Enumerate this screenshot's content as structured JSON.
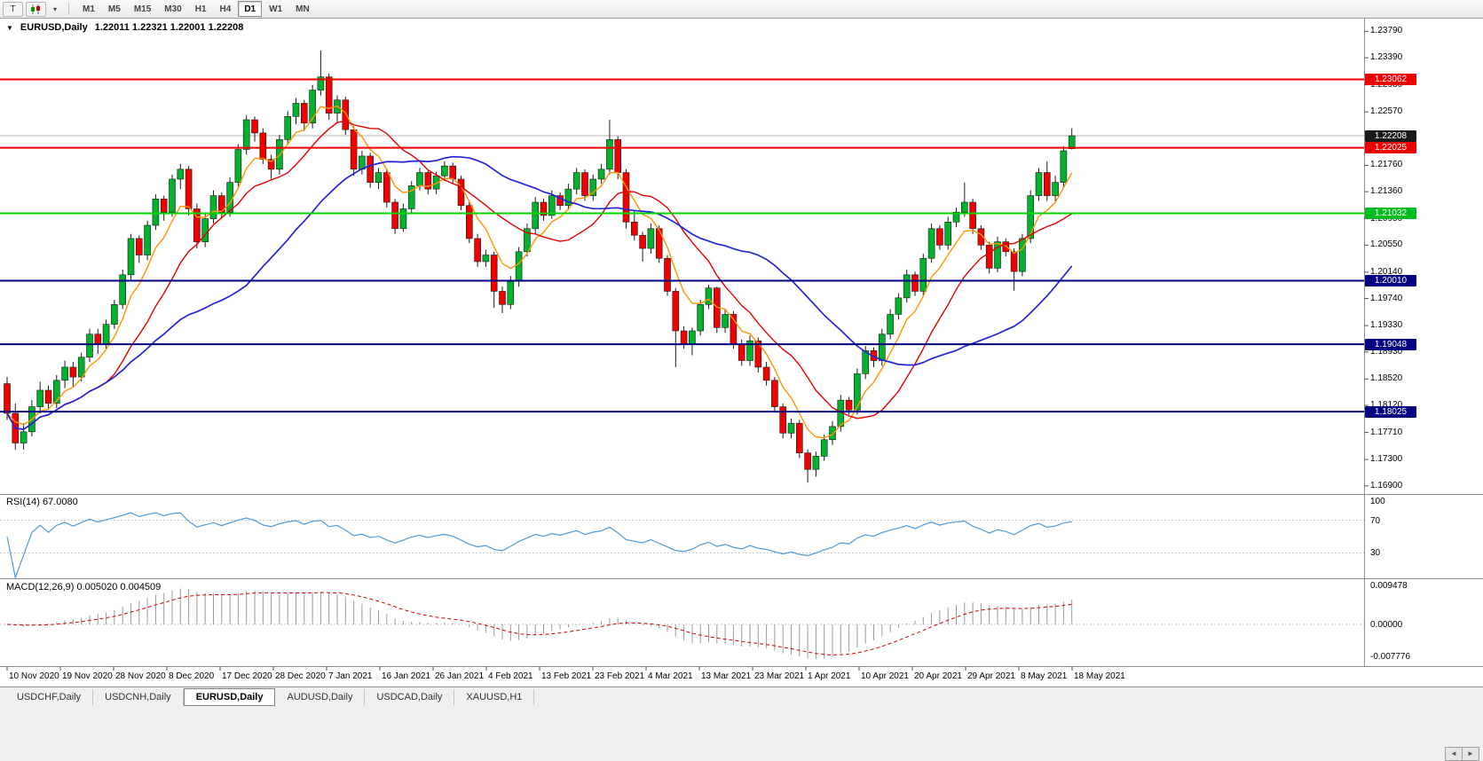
{
  "toolbar": {
    "tool_button": "T",
    "caret_icon": "▾",
    "timeframes": [
      "M1",
      "M5",
      "M15",
      "M30",
      "H1",
      "H4",
      "D1",
      "W1",
      "MN"
    ],
    "active_timeframe": "D1"
  },
  "chart": {
    "collapse_icon": "▼",
    "title": "EURUSD,Daily",
    "ohlc_text": "1.22011 1.22321 1.22001 1.22208",
    "open": "1.22011",
    "high": "1.22321",
    "low": "1.22001",
    "close": "1.22208"
  },
  "price_axis": {
    "ticks": [
      "1.23790",
      "1.23390",
      "1.22980",
      "1.22570",
      "1.21760",
      "1.21360",
      "1.20950",
      "1.20550",
      "1.20140",
      "1.19740",
      "1.19330",
      "1.18930",
      "1.18520",
      "1.18120",
      "1.17710",
      "1.17300",
      "1.16900"
    ],
    "badges": [
      {
        "label": "1.23062",
        "bg": "#ee0000"
      },
      {
        "label": "1.22208",
        "bg": "#1a1a1a"
      },
      {
        "label": "1.22025",
        "bg": "#ee0000"
      },
      {
        "label": "1.21032",
        "bg": "#00bb22"
      },
      {
        "label": "1.20010",
        "bg": "#000080"
      },
      {
        "label": "1.19048",
        "bg": "#000080"
      },
      {
        "label": "1.18025",
        "bg": "#000080"
      }
    ]
  },
  "rsi_panel": {
    "label": "RSI(14) 67.0080",
    "levels": [
      "100",
      "70",
      "30"
    ]
  },
  "macd_panel": {
    "label": "MACD(12,26,9) 0.005020 0.004509",
    "axis_labels": [
      "0.009478",
      "0.00000",
      "-0.007776"
    ]
  },
  "date_axis": {
    "labels": [
      "10 Nov 2020",
      "19 Nov 2020",
      "28 Nov 2020",
      "8 Dec 2020",
      "17 Dec 2020",
      "28 Dec 2020",
      "7 Jan 2021",
      "16 Jan 2021",
      "26 Jan 2021",
      "4 Feb 2021",
      "13 Feb 2021",
      "23 Feb 2021",
      "4 Mar 2021",
      "13 Mar 2021",
      "23 Mar 2021",
      "1 Apr 2021",
      "10 Apr 2021",
      "20 Apr 2021",
      "29 Apr 2021",
      "8 May 2021",
      "18 May 2021"
    ]
  },
  "tabs": [
    {
      "label": "USDCHF,Daily",
      "active": false
    },
    {
      "label": "USDCNH,Daily",
      "active": false
    },
    {
      "label": "EURUSD,Daily",
      "active": true
    },
    {
      "label": "AUDUSD,Daily",
      "active": false
    },
    {
      "label": "USDCAD,Daily",
      "active": false
    },
    {
      "label": "XAUUSD,H1",
      "active": false
    }
  ],
  "bottom": {
    "scroll_left_icon": "◄",
    "scroll_right_icon": "►"
  },
  "chart_data": {
    "type": "candlestick",
    "symbol": "EURUSD",
    "timeframe": "Daily",
    "y_range": {
      "min": 1.1679,
      "max": 1.2397
    },
    "current_price": 1.22208,
    "bull_color": "#00b22d",
    "bear_color": "#f20000",
    "wick_color": "#1a1a1a",
    "hlines": [
      {
        "price": 1.23062,
        "color": "#ee0000",
        "width": 2
      },
      {
        "price": 1.22025,
        "color": "#ee0000",
        "width": 2
      },
      {
        "price": 1.21032,
        "color": "#00d400",
        "width": 2
      },
      {
        "price": 1.2001,
        "color": "#000080",
        "width": 2
      },
      {
        "price": 1.19048,
        "color": "#000080",
        "width": 2
      },
      {
        "price": 1.18025,
        "color": "#000080",
        "width": 2
      }
    ],
    "moving_averages": [
      {
        "name": "fast",
        "method": "ema",
        "period": 6,
        "color": "#ff9500",
        "width": 1.4
      },
      {
        "name": "medium",
        "method": "sma",
        "period": 13,
        "color": "#e60000",
        "width": 1.4
      },
      {
        "name": "slow",
        "method": "sma",
        "period": 30,
        "color": "#2424d6",
        "width": 1.7
      }
    ],
    "indicators": {
      "rsi": {
        "period": 14,
        "current": 67.008,
        "color": "#4f9bd8",
        "levels": [
          70,
          30
        ]
      },
      "macd": {
        "fast": 12,
        "slow": 26,
        "signal": 9,
        "current_main": 0.00502,
        "current_signal": 0.004509,
        "histogram_color": "#9a9a9a",
        "signal_color": "#d40000",
        "scale_max": 0.009478,
        "scale_min": -0.007776
      }
    },
    "candles_ohlc": [
      [
        1.1845,
        1.1855,
        1.179,
        1.18
      ],
      [
        1.18,
        1.1815,
        1.1745,
        1.1755
      ],
      [
        1.1755,
        1.1785,
        1.1745,
        1.1772
      ],
      [
        1.1772,
        1.182,
        1.1765,
        1.181
      ],
      [
        1.181,
        1.1848,
        1.18,
        1.1835
      ],
      [
        1.1835,
        1.1842,
        1.1805,
        1.1815
      ],
      [
        1.1815,
        1.1858,
        1.1808,
        1.185
      ],
      [
        1.185,
        1.188,
        1.1838,
        1.187
      ],
      [
        1.187,
        1.1878,
        1.184,
        1.1855
      ],
      [
        1.1855,
        1.1892,
        1.1848,
        1.1885
      ],
      [
        1.1885,
        1.1928,
        1.1878,
        1.192
      ],
      [
        1.192,
        1.1928,
        1.189,
        1.1905
      ],
      [
        1.1905,
        1.1942,
        1.1898,
        1.1935
      ],
      [
        1.1935,
        1.1972,
        1.1928,
        1.1965
      ],
      [
        1.1965,
        1.2018,
        1.1958,
        1.201
      ],
      [
        1.201,
        1.2072,
        1.2002,
        1.2065
      ],
      [
        1.2065,
        1.207,
        1.2028,
        1.204
      ],
      [
        1.204,
        1.2092,
        1.2032,
        1.2085
      ],
      [
        1.2085,
        1.2132,
        1.2078,
        1.2125
      ],
      [
        1.2125,
        1.213,
        1.2092,
        1.2105
      ],
      [
        1.2105,
        1.2162,
        1.2098,
        1.2155
      ],
      [
        1.2155,
        1.2178,
        1.214,
        1.217
      ],
      [
        1.217,
        1.2175,
        1.21,
        1.211
      ],
      [
        1.211,
        1.2118,
        1.205,
        1.206
      ],
      [
        1.206,
        1.2102,
        1.2052,
        1.2095
      ],
      [
        1.2095,
        1.2138,
        1.2088,
        1.213
      ],
      [
        1.213,
        1.2135,
        1.2095,
        1.2105
      ],
      [
        1.2105,
        1.2158,
        1.2098,
        1.215
      ],
      [
        1.215,
        1.2208,
        1.2142,
        1.22
      ],
      [
        1.22,
        1.2252,
        1.2192,
        1.2245
      ],
      [
        1.2245,
        1.225,
        1.2212,
        1.2225
      ],
      [
        1.2225,
        1.2232,
        1.2178,
        1.2185
      ],
      [
        1.2185,
        1.2192,
        1.2155,
        1.217
      ],
      [
        1.217,
        1.2222,
        1.2162,
        1.2215
      ],
      [
        1.2215,
        1.2258,
        1.2208,
        1.225
      ],
      [
        1.225,
        1.2278,
        1.2238,
        1.227
      ],
      [
        1.227,
        1.2275,
        1.2228,
        1.224
      ],
      [
        1.224,
        1.2298,
        1.2232,
        1.229
      ],
      [
        1.229,
        1.235,
        1.2282,
        1.231
      ],
      [
        1.231,
        1.2315,
        1.2245,
        1.2255
      ],
      [
        1.2255,
        1.2282,
        1.224,
        1.2275
      ],
      [
        1.2275,
        1.228,
        1.2222,
        1.223
      ],
      [
        1.223,
        1.2235,
        1.216,
        1.217
      ],
      [
        1.217,
        1.2198,
        1.2162,
        1.219
      ],
      [
        1.219,
        1.2195,
        1.2142,
        1.215
      ],
      [
        1.215,
        1.2172,
        1.214,
        1.2165
      ],
      [
        1.2165,
        1.217,
        1.2112,
        1.212
      ],
      [
        1.212,
        1.2125,
        1.2072,
        1.208
      ],
      [
        1.208,
        1.2118,
        1.2075,
        1.211
      ],
      [
        1.211,
        1.2152,
        1.2102,
        1.2145
      ],
      [
        1.2145,
        1.2172,
        1.2138,
        1.2165
      ],
      [
        1.2165,
        1.2168,
        1.2132,
        1.214
      ],
      [
        1.214,
        1.2166,
        1.2132,
        1.216
      ],
      [
        1.216,
        1.2182,
        1.2152,
        1.2175
      ],
      [
        1.2175,
        1.218,
        1.2148,
        1.2155
      ],
      [
        1.2155,
        1.216,
        1.2108,
        1.2115
      ],
      [
        1.2115,
        1.212,
        1.2058,
        1.2065
      ],
      [
        1.2065,
        1.2072,
        1.2022,
        1.203
      ],
      [
        1.203,
        1.2048,
        1.2022,
        1.204
      ],
      [
        1.204,
        1.2045,
        1.196,
        1.1985
      ],
      [
        1.1985,
        1.1992,
        1.1952,
        1.1965
      ],
      [
        1.1965,
        1.2008,
        1.1958,
        1.2
      ],
      [
        1.2,
        1.2052,
        1.1992,
        1.2045
      ],
      [
        1.2045,
        1.2088,
        1.2038,
        1.208
      ],
      [
        1.208,
        1.2128,
        1.2072,
        1.212
      ],
      [
        1.212,
        1.2125,
        1.2092,
        1.21
      ],
      [
        1.21,
        1.2138,
        1.2095,
        1.213
      ],
      [
        1.213,
        1.2135,
        1.2108,
        1.2115
      ],
      [
        1.2115,
        1.2148,
        1.2108,
        1.214
      ],
      [
        1.214,
        1.2172,
        1.2132,
        1.2165
      ],
      [
        1.2165,
        1.217,
        1.2122,
        1.213
      ],
      [
        1.213,
        1.2162,
        1.2122,
        1.2155
      ],
      [
        1.2155,
        1.2178,
        1.2148,
        1.217
      ],
      [
        1.217,
        1.2245,
        1.2162,
        1.2215
      ],
      [
        1.2215,
        1.222,
        1.2155,
        1.2165
      ],
      [
        1.2165,
        1.217,
        1.208,
        1.209
      ],
      [
        1.209,
        1.2108,
        1.2062,
        1.207
      ],
      [
        1.207,
        1.2075,
        1.203,
        1.205
      ],
      [
        1.205,
        1.2088,
        1.2042,
        1.208
      ],
      [
        1.208,
        1.2085,
        1.2028,
        1.2035
      ],
      [
        1.2035,
        1.204,
        1.1978,
        1.1985
      ],
      [
        1.1985,
        1.199,
        1.187,
        1.1925
      ],
      [
        1.1925,
        1.1932,
        1.1898,
        1.1905
      ],
      [
        1.1905,
        1.193,
        1.1888,
        1.1925
      ],
      [
        1.1925,
        1.1972,
        1.1918,
        1.1965
      ],
      [
        1.1965,
        1.1995,
        1.1958,
        1.199
      ],
      [
        1.199,
        1.1992,
        1.1922,
        1.193
      ],
      [
        1.193,
        1.1958,
        1.1922,
        1.195
      ],
      [
        1.195,
        1.1955,
        1.1898,
        1.1905
      ],
      [
        1.1905,
        1.1912,
        1.1872,
        1.188
      ],
      [
        1.188,
        1.1918,
        1.1872,
        1.191
      ],
      [
        1.191,
        1.1915,
        1.1862,
        1.187
      ],
      [
        1.187,
        1.1878,
        1.1842,
        1.185
      ],
      [
        1.185,
        1.1855,
        1.1802,
        1.181
      ],
      [
        1.181,
        1.1815,
        1.1762,
        1.177
      ],
      [
        1.177,
        1.1792,
        1.1762,
        1.1785
      ],
      [
        1.1785,
        1.179,
        1.1732,
        1.174
      ],
      [
        1.174,
        1.1745,
        1.1695,
        1.1715
      ],
      [
        1.1715,
        1.1742,
        1.1704,
        1.1735
      ],
      [
        1.1735,
        1.1768,
        1.1728,
        1.176
      ],
      [
        1.176,
        1.1788,
        1.1752,
        1.178
      ],
      [
        1.178,
        1.1828,
        1.1772,
        1.182
      ],
      [
        1.182,
        1.1825,
        1.1798,
        1.1805
      ],
      [
        1.1805,
        1.1868,
        1.1798,
        1.186
      ],
      [
        1.186,
        1.1902,
        1.1852,
        1.1895
      ],
      [
        1.1895,
        1.19,
        1.187,
        1.188
      ],
      [
        1.188,
        1.1928,
        1.1872,
        1.192
      ],
      [
        1.192,
        1.1958,
        1.1912,
        1.195
      ],
      [
        1.195,
        1.1982,
        1.1942,
        1.1975
      ],
      [
        1.1975,
        1.2018,
        1.1968,
        1.201
      ],
      [
        1.201,
        1.2015,
        1.1978,
        1.1985
      ],
      [
        1.1985,
        1.2042,
        1.1978,
        1.2035
      ],
      [
        1.2035,
        1.2088,
        1.2028,
        1.208
      ],
      [
        1.208,
        1.2085,
        1.2048,
        1.2055
      ],
      [
        1.2055,
        1.2098,
        1.2048,
        1.209
      ],
      [
        1.209,
        1.2112,
        1.2082,
        1.2105
      ],
      [
        1.2105,
        1.215,
        1.2098,
        1.212
      ],
      [
        1.212,
        1.2125,
        1.2072,
        1.208
      ],
      [
        1.208,
        1.2085,
        1.2048,
        1.2055
      ],
      [
        1.2055,
        1.206,
        1.2012,
        1.202
      ],
      [
        1.202,
        1.2068,
        1.2014,
        1.206
      ],
      [
        1.206,
        1.2065,
        1.2038,
        1.2045
      ],
      [
        1.2045,
        1.205,
        1.1986,
        1.2015
      ],
      [
        1.2015,
        1.2072,
        1.2008,
        1.2065
      ],
      [
        1.2065,
        1.2138,
        1.2058,
        1.213
      ],
      [
        1.213,
        1.2172,
        1.2122,
        1.2165
      ],
      [
        1.2165,
        1.2182,
        1.2122,
        1.213
      ],
      [
        1.213,
        1.216,
        1.2122,
        1.215
      ],
      [
        1.215,
        1.2205,
        1.2142,
        1.2198
      ],
      [
        1.22011,
        1.22321,
        1.22001,
        1.22208
      ]
    ]
  }
}
